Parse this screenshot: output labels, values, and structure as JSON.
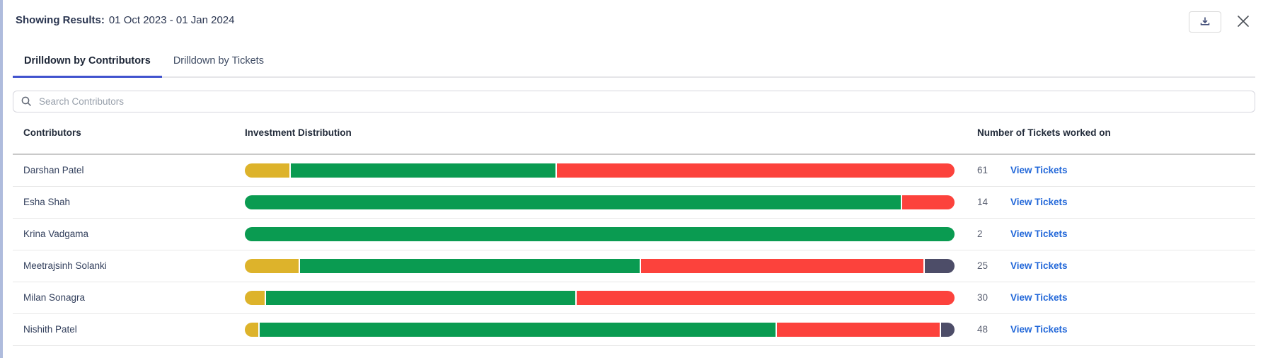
{
  "header": {
    "results_label": "Showing Results:",
    "results_range": "01 Oct 2023 - 01 Jan 2024"
  },
  "tabs": [
    {
      "label": "Drilldown by Contributors",
      "active": true
    },
    {
      "label": "Drilldown by Tickets",
      "active": false
    }
  ],
  "search": {
    "placeholder": "Search Contributors"
  },
  "table": {
    "columns": [
      "Contributors",
      "Investment Distribution",
      "Number of Tickets worked on"
    ],
    "link_label": "View Tickets",
    "rows": [
      {
        "name": "Darshan Patel",
        "tickets": "61",
        "segments": [
          {
            "color": "yellow",
            "pct": 6.3
          },
          {
            "color": "green",
            "pct": 37.4
          },
          {
            "color": "red",
            "pct": 56.3
          }
        ]
      },
      {
        "name": "Esha Shah",
        "tickets": "14",
        "segments": [
          {
            "color": "green",
            "pct": 92.6
          },
          {
            "color": "red",
            "pct": 7.4
          }
        ]
      },
      {
        "name": "Krina Vadgama",
        "tickets": "2",
        "segments": [
          {
            "color": "green",
            "pct": 100
          }
        ]
      },
      {
        "name": "Meetrajsinh Solanki",
        "tickets": "25",
        "segments": [
          {
            "color": "yellow",
            "pct": 7.6
          },
          {
            "color": "green",
            "pct": 48.2
          },
          {
            "color": "red",
            "pct": 40.0
          },
          {
            "color": "dark",
            "pct": 4.2
          }
        ]
      },
      {
        "name": "Milan Sonagra",
        "tickets": "30",
        "segments": [
          {
            "color": "yellow",
            "pct": 2.8
          },
          {
            "color": "green",
            "pct": 43.7
          },
          {
            "color": "red",
            "pct": 53.5
          }
        ]
      },
      {
        "name": "Nishith Patel",
        "tickets": "48",
        "segments": [
          {
            "color": "yellow",
            "pct": 1.9
          },
          {
            "color": "green",
            "pct": 73.1
          },
          {
            "color": "red",
            "pct": 23.1
          },
          {
            "color": "dark",
            "pct": 1.9
          }
        ]
      }
    ]
  },
  "colors": {
    "yellow": "#DDB32B",
    "green": "#0A9B51",
    "red": "#FC423C",
    "dark": "#4D4D68",
    "tab_accent": "#4153CE",
    "link_blue": "#2368D9",
    "left_strip": "#AFBCDD"
  }
}
